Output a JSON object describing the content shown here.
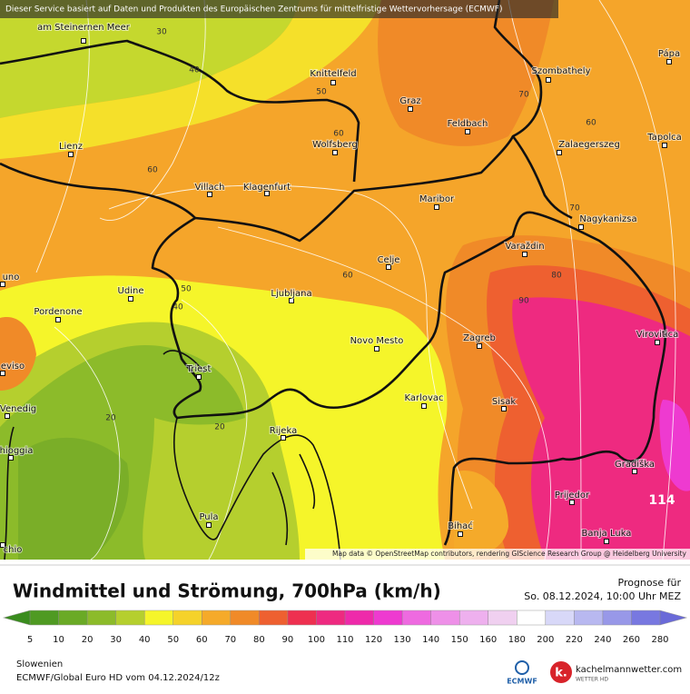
{
  "banner": "Dieser Service basiert auf Daten und Produkten des Europäischen Zentrums für mittelfristige Wettervorhersage (ECMWF)",
  "attribution": "Map data © OpenStreetMap contributors, rendering GIScience Research Group @ Heidelberg University",
  "cities": [
    "am Steinernen Meer",
    "Knittelfeld",
    "Graz",
    "Szombathely",
    "Pápa",
    "Feldbach",
    "Lienz",
    "Wolfsberg",
    "Zalaegerszeg",
    "Tapolca",
    "Villach",
    "Klagenfurt",
    "Maribor",
    "Nagykanizsa",
    "Varaždin",
    "Celje",
    "Udine",
    "Ljubljana",
    "Pordenone",
    "Novo Mesto",
    "Zagreb",
    "Virovitica",
    "Triest",
    "Karlovac",
    "Sisak",
    "Rijeka",
    "Gradiška",
    "Prijedor",
    "Pula",
    "Bihać",
    "Banja Luka",
    "uno",
    "eviso",
    "Venedig",
    "hioggia",
    "chio"
  ],
  "contour_labels": [
    "30",
    "40",
    "50",
    "60",
    "60",
    "70",
    "60",
    "70",
    "60",
    "80",
    "90",
    "50",
    "40",
    "20",
    "20"
  ],
  "max_label": "114",
  "title": "Windmittel und Strömung, 700hPa (km/h)",
  "forecast_label": "Prognose für",
  "forecast_time": "So. 08.12.2024, 10:00 Uhr MEZ",
  "legend": {
    "ticks": [
      5,
      10,
      20,
      30,
      40,
      50,
      60,
      70,
      80,
      90,
      100,
      110,
      120,
      130,
      140,
      150,
      160,
      180,
      200,
      220,
      240,
      260,
      280
    ],
    "colors": [
      "#3a8c1e",
      "#4f9a22",
      "#6aaa26",
      "#8cbb2a",
      "#b5cf2e",
      "#f5f52a",
      "#f5d22a",
      "#f5aa2a",
      "#f08a28",
      "#ee6030",
      "#ee3050",
      "#ee2a80",
      "#ee2aaa",
      "#ee3ad0",
      "#ee6ae0",
      "#ee90e8",
      "#eeb0ee",
      "#f0d0f0",
      "#ffffff",
      "#d8d8f8",
      "#b8b8f0",
      "#9898e8",
      "#7878e0",
      "#6a6ad8"
    ]
  },
  "region": "Slowenien",
  "model_run": "ECMWF/Global Euro HD vom 04.12.2024/12z",
  "logos": {
    "ecmwf": "ECMWF",
    "site": "kachelmannwetter.com",
    "site_sub": "WETTER HD"
  }
}
